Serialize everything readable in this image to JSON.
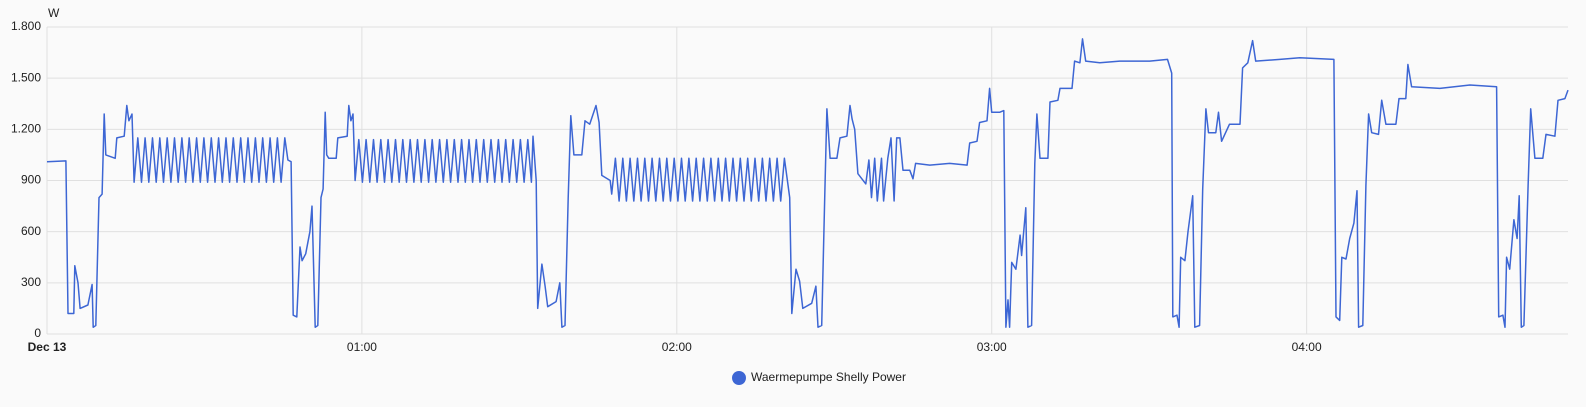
{
  "chart_data": {
    "type": "line",
    "y_label": "W",
    "xlim": [
      0,
      289.8
    ],
    "ylim": [
      0,
      1800
    ],
    "xticks": [
      {
        "value": 0,
        "label": "Dec 13"
      },
      {
        "value": 60,
        "label": "01:00"
      },
      {
        "value": 120,
        "label": "02:00"
      },
      {
        "value": 180,
        "label": "03:00"
      },
      {
        "value": 240,
        "label": "04:00"
      }
    ],
    "yticks": [
      0,
      300,
      600,
      900,
      {
        "value": 1200,
        "label": "1.200"
      },
      {
        "value": 1500,
        "label": "1.500"
      },
      {
        "value": 1800,
        "label": "1.800"
      }
    ],
    "grid": true,
    "legend": "bottom",
    "x": [
      0,
      3.6,
      4.0,
      5.1,
      5.3,
      5.9,
      6.3,
      7.8,
      8.6,
      8.8,
      9.3,
      9.9,
      10.5,
      10.9,
      11.2,
      13,
      13.3,
      14.7,
      15.2,
      15.6,
      16.2,
      16.6,
      17.3,
      18,
      18.7,
      19.4,
      20.1,
      20.8,
      21.5,
      22.2,
      22.9,
      23.6,
      24.3,
      25,
      25.7,
      26.4,
      27.1,
      27.8,
      28.5,
      29.2,
      29.9,
      30.6,
      31.3,
      32,
      32.7,
      33.4,
      34.1,
      34.8,
      35.5,
      36.2,
      36.9,
      37.6,
      38.3,
      39,
      39.7,
      40.4,
      41.1,
      41.8,
      42.5,
      43.2,
      43.9,
      44.6,
      45.3,
      45.9,
      46.5,
      46.9,
      47.6,
      48.2,
      48.6,
      49.3,
      50.1,
      50.5,
      51.1,
      51.6,
      52.2,
      52.6,
      53,
      53.3,
      53.7,
      55.1,
      55.4,
      57.2,
      57.5,
      57.9,
      58.3,
      58.7,
      59.4,
      60.1,
      60.8,
      61.5,
      62.2,
      62.9,
      63.6,
      64.3,
      65,
      65.7,
      66.4,
      67.1,
      67.8,
      68.5,
      69.2,
      69.9,
      70.6,
      71.3,
      72,
      72.7,
      73.4,
      74.1,
      74.8,
      75.5,
      76.2,
      76.9,
      77.6,
      78.3,
      79,
      79.7,
      80.4,
      81.1,
      81.8,
      82.5,
      83.2,
      83.9,
      84.6,
      85.3,
      86,
      86.7,
      87.4,
      88.1,
      88.8,
      89.5,
      90.2,
      90.9,
      91.6,
      92.3,
      92.6,
      93.2,
      93.5,
      94.3,
      94.9,
      95.4,
      97,
      97.7,
      98.1,
      98.7,
      99.3,
      99.8,
      100.4,
      101.9,
      102.5,
      103.4,
      104.6,
      105.2,
      105.7,
      107.3,
      107.6,
      108.3,
      109,
      109.7,
      110.4,
      111.1,
      111.8,
      112.5,
      113.2,
      113.9,
      114.6,
      115.3,
      116,
      116.7,
      117.4,
      118.1,
      118.8,
      119.5,
      120.2,
      120.9,
      121.6,
      122.3,
      123,
      123.7,
      124.4,
      125.1,
      125.8,
      126.5,
      127.2,
      127.9,
      128.6,
      129.3,
      130,
      130.7,
      131.4,
      132.1,
      132.8,
      133.5,
      134.2,
      134.9,
      135.6,
      136.3,
      137,
      137.7,
      138.4,
      139.1,
      139.8,
      140.5,
      141.5,
      141.9,
      142.7,
      143.4,
      144,
      145.7,
      146.5,
      146.9,
      147.6,
      148.2,
      148.6,
      149.2,
      150.5,
      151.1,
      152.4,
      153,
      153.4,
      153.9,
      154.5,
      156,
      156.6,
      157.1,
      157.7,
      158.2,
      159,
      159.4,
      160.2,
      160.8,
      161.4,
      161.9,
      162.5,
      163.1,
      164.4,
      165,
      165.5,
      168.2,
      172,
      175.3,
      175.8,
      177.2,
      177.7,
      179.1,
      179.6,
      180,
      181.5,
      182.3,
      182.7,
      183.1,
      183.4,
      183.8,
      184.6,
      185.4,
      185.7,
      186.5,
      186.9,
      187.6,
      188.2,
      188.6,
      189.2,
      190.7,
      191.1,
      192.6,
      193,
      195.3,
      195.8,
      196.8,
      197.3,
      197.9,
      200.6,
      204.4,
      210.1,
      213.5,
      214.3,
      214.5,
      215.3,
      215.7,
      216,
      216.8,
      217.4,
      218.3,
      218.7,
      219.6,
      220.2,
      220.8,
      221.3,
      222.7,
      223.2,
      223.8,
      225.3,
      227.3,
      227.8,
      228.8,
      229.7,
      230.3,
      234.9,
      238.7,
      245.2,
      245.6,
      246.3,
      246.7,
      247.5,
      248.2,
      249,
      249.6,
      249.9,
      250.7,
      251.3,
      251.8,
      252.4,
      253.7,
      254.3,
      255.1,
      257,
      257.6,
      258.9,
      259.3,
      260,
      265.4,
      271.1,
      276.2,
      276.6,
      277.4,
      277.8,
      278.1,
      278.7,
      279.5,
      280.1,
      280.5,
      280.9,
      281.4,
      282.2,
      282.7,
      283.5,
      285,
      285.6,
      287.3,
      287.9,
      289.2,
      289.8
    ],
    "series": [
      {
        "name": "Waermepumpe Shelly Power",
        "color": "#3d66d4",
        "values": [
          1010,
          1015,
          120,
          120,
          400,
          300,
          150,
          170,
          290,
          40,
          50,
          800,
          820,
          1290,
          1050,
          1030,
          1150,
          1160,
          1340,
          1250,
          1290,
          890,
          1150,
          890,
          1150,
          890,
          1150,
          890,
          1150,
          890,
          1150,
          890,
          1150,
          890,
          1150,
          890,
          1150,
          890,
          1150,
          890,
          1150,
          890,
          1150,
          890,
          1150,
          890,
          1150,
          890,
          1150,
          890,
          1150,
          890,
          1150,
          890,
          1150,
          890,
          1150,
          890,
          1150,
          890,
          1150,
          890,
          1150,
          1020,
          1010,
          110,
          100,
          510,
          430,
          470,
          600,
          750,
          40,
          50,
          800,
          850,
          1300,
          1050,
          1030,
          1030,
          1150,
          1160,
          1340,
          1250,
          1290,
          900,
          1140,
          890,
          1140,
          890,
          1140,
          890,
          1140,
          890,
          1140,
          890,
          1140,
          890,
          1140,
          890,
          1140,
          890,
          1140,
          890,
          1140,
          890,
          1140,
          890,
          1140,
          890,
          1140,
          890,
          1140,
          890,
          1140,
          890,
          1140,
          890,
          1140,
          890,
          1140,
          890,
          1140,
          890,
          1140,
          890,
          1140,
          890,
          1140,
          890,
          1140,
          890,
          1140,
          890,
          1160,
          900,
          150,
          410,
          280,
          160,
          190,
          300,
          40,
          50,
          800,
          1280,
          1050,
          1050,
          1250,
          1230,
          1340,
          1240,
          930,
          900,
          820,
          1030,
          780,
          1030,
          780,
          1030,
          780,
          1030,
          780,
          1030,
          780,
          1030,
          780,
          1030,
          780,
          1030,
          780,
          1030,
          780,
          1030,
          780,
          1030,
          780,
          1030,
          780,
          1030,
          780,
          1030,
          780,
          1030,
          780,
          1030,
          780,
          1030,
          780,
          1030,
          780,
          1030,
          780,
          1030,
          780,
          1030,
          780,
          1030,
          780,
          1030,
          780,
          1030,
          800,
          120,
          380,
          310,
          150,
          180,
          280,
          40,
          50,
          820,
          1320,
          1030,
          1030,
          1150,
          1160,
          1340,
          1260,
          1200,
          940,
          880,
          1020,
          800,
          1030,
          780,
          1030,
          780,
          1030,
          1150,
          780,
          1150,
          1150,
          960,
          960,
          910,
          1000,
          990,
          1000,
          990,
          1120,
          1130,
          1240,
          1250,
          1440,
          1300,
          1300,
          1310,
          40,
          200,
          40,
          420,
          380,
          580,
          460,
          740,
          40,
          50,
          1000,
          1290,
          1030,
          1030,
          1360,
          1370,
          1440,
          1440,
          1600,
          1590,
          1730,
          1600,
          1590,
          1600,
          1600,
          1610,
          1530,
          100,
          110,
          40,
          450,
          430,
          600,
          810,
          40,
          50,
          850,
          1320,
          1180,
          1180,
          1300,
          1130,
          1230,
          1230,
          1560,
          1590,
          1720,
          1600,
          1610,
          1620,
          1610,
          100,
          80,
          450,
          440,
          560,
          650,
          840,
          40,
          50,
          870,
          1290,
          1180,
          1170,
          1370,
          1230,
          1230,
          1380,
          1380,
          1580,
          1450,
          1440,
          1460,
          1450,
          100,
          110,
          40,
          450,
          380,
          670,
          560,
          810,
          40,
          50,
          870,
          1320,
          1030,
          1030,
          1170,
          1160,
          1370,
          1380,
          1430
        ]
      }
    ]
  }
}
